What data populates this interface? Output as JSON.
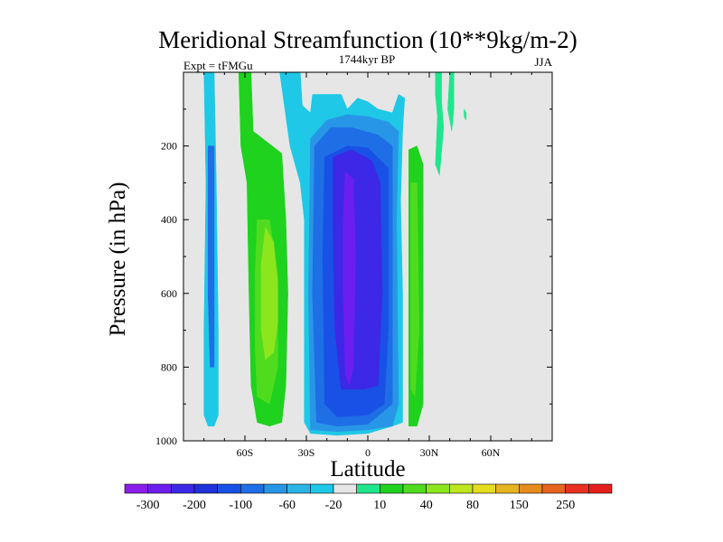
{
  "chart_data": {
    "type": "heatmap",
    "title": "Meridional Streamfunction (10**9kg/m-2)",
    "left_label": "Expt = tFMGu",
    "center_label": "1744kyr BP",
    "right_label": "JJA",
    "xlabel": "Latitude",
    "ylabel": "Pressure (in hPa)",
    "xlim": [
      -90,
      90
    ],
    "ylim": [
      1000,
      0
    ],
    "x_ticks": [
      {
        "value": -60,
        "label": "60S"
      },
      {
        "value": -30,
        "label": "30S"
      },
      {
        "value": 0,
        "label": "0"
      },
      {
        "value": 30,
        "label": "30N"
      },
      {
        "value": 60,
        "label": "60N"
      }
    ],
    "y_ticks": [
      {
        "value": 200,
        "label": "200"
      },
      {
        "value": 400,
        "label": "400"
      },
      {
        "value": 600,
        "label": "600"
      },
      {
        "value": 800,
        "label": "800"
      },
      {
        "value": 1000,
        "label": "1000"
      }
    ],
    "background_color": "#e6e6e6",
    "colorbar": {
      "colors": [
        "#8c1eeb",
        "#6c1ef0",
        "#3c28e6",
        "#1e32dc",
        "#1950e6",
        "#1e6ee6",
        "#2896e6",
        "#2cb4e6",
        "#1ec8e6",
        "#e6e6e6",
        "#1ee68c",
        "#1ed21e",
        "#50dc1e",
        "#8ce61e",
        "#bee61e",
        "#e6dc1e",
        "#e6b41e",
        "#e68c1e",
        "#e6641e",
        "#e6321e",
        "#e61e1e"
      ],
      "labels": [
        {
          "after_box": 1,
          "text": "-300"
        },
        {
          "after_box": 3,
          "text": "-200"
        },
        {
          "after_box": 5,
          "text": "-100"
        },
        {
          "after_box": 7,
          "text": "-60"
        },
        {
          "after_box": 9,
          "text": "-20"
        },
        {
          "after_box": 11,
          "text": "10"
        },
        {
          "after_box": 13,
          "text": "40"
        },
        {
          "after_box": 15,
          "text": "80"
        },
        {
          "after_box": 17,
          "text": "150"
        },
        {
          "after_box": 19,
          "text": "250"
        }
      ]
    },
    "cells": [
      {
        "name": "cyan-southern-polar-cell",
        "color": "#1ec8e6",
        "pts": [
          [
            -80,
            0
          ],
          [
            -75,
            0
          ],
          [
            -74,
            300
          ],
          [
            -73,
            700
          ],
          [
            -73,
            930
          ],
          [
            -75,
            960
          ],
          [
            -78,
            960
          ],
          [
            -80,
            930
          ],
          [
            -80,
            700
          ],
          [
            -79,
            300
          ]
        ]
      },
      {
        "name": "blue-southern-polar-core",
        "color": "#1e6ee6",
        "pts": [
          [
            -78,
            200
          ],
          [
            -75,
            200
          ],
          [
            -75,
            800
          ],
          [
            -77,
            800
          ],
          [
            -78,
            600
          ]
        ]
      },
      {
        "name": "green-ferrel-cell",
        "color": "#1ed21e",
        "pts": [
          [
            -63,
            0
          ],
          [
            -57,
            0
          ],
          [
            -56,
            160
          ],
          [
            -42,
            220
          ],
          [
            -40,
            400
          ],
          [
            -39,
            600
          ],
          [
            -40,
            850
          ],
          [
            -42,
            950
          ],
          [
            -48,
            960
          ],
          [
            -54,
            950
          ],
          [
            -57,
            850
          ],
          [
            -58,
            600
          ],
          [
            -59,
            300
          ],
          [
            -62,
            200
          ]
        ]
      },
      {
        "name": "light-green-ferrel-core",
        "color": "#50dc1e",
        "pts": [
          [
            -54,
            400
          ],
          [
            -48,
            400
          ],
          [
            -44,
            550
          ],
          [
            -44,
            800
          ],
          [
            -48,
            900
          ],
          [
            -54,
            880
          ],
          [
            -55,
            750
          ],
          [
            -55,
            550
          ]
        ]
      },
      {
        "name": "yellow-green-ferrel-max",
        "color": "#8ce61e",
        "pts": [
          [
            -50,
            420
          ],
          [
            -46,
            460
          ],
          [
            -44,
            570
          ],
          [
            -44,
            680
          ],
          [
            -46,
            760
          ],
          [
            -50,
            780
          ],
          [
            -52,
            700
          ],
          [
            -52,
            520
          ]
        ]
      },
      {
        "name": "cyan-hadley-envelope",
        "color": "#1ec8e6",
        "pts": [
          [
            -43,
            0
          ],
          [
            -33,
            0
          ],
          [
            -32,
            90
          ],
          [
            -28,
            110
          ],
          [
            -27,
            60
          ],
          [
            -13,
            60
          ],
          [
            -10,
            100
          ],
          [
            -5,
            70
          ],
          [
            0,
            80
          ],
          [
            5,
            100
          ],
          [
            12,
            110
          ],
          [
            15,
            60
          ],
          [
            18,
            70
          ],
          [
            17,
            160
          ],
          [
            16,
            350
          ],
          [
            17,
            600
          ],
          [
            17,
            950
          ],
          [
            12,
            960
          ],
          [
            0,
            980
          ],
          [
            -15,
            985
          ],
          [
            -28,
            980
          ],
          [
            -31,
            950
          ],
          [
            -31,
            600
          ],
          [
            -31,
            400
          ],
          [
            -33,
            300
          ],
          [
            -38,
            200
          ]
        ]
      },
      {
        "name": "blue-hadley-outer",
        "color": "#2896e6",
        "pts": [
          [
            -28,
            180
          ],
          [
            -20,
            130
          ],
          [
            -10,
            115
          ],
          [
            0,
            120
          ],
          [
            10,
            135
          ],
          [
            15,
            160
          ],
          [
            14,
            400
          ],
          [
            15,
            900
          ],
          [
            12,
            960
          ],
          [
            0,
            970
          ],
          [
            -15,
            975
          ],
          [
            -28,
            970
          ],
          [
            -29,
            600
          ]
        ]
      },
      {
        "name": "blue-hadley-mid",
        "color": "#1e6ee6",
        "pts": [
          [
            -26,
            200
          ],
          [
            -18,
            150
          ],
          [
            -8,
            150
          ],
          [
            5,
            170
          ],
          [
            12,
            200
          ],
          [
            12,
            500
          ],
          [
            12,
            900
          ],
          [
            0,
            955
          ],
          [
            -15,
            960
          ],
          [
            -25,
            950
          ],
          [
            -27,
            600
          ]
        ]
      },
      {
        "name": "blue-hadley-inner",
        "color": "#1950e6",
        "pts": [
          [
            -21,
            230
          ],
          [
            -10,
            200
          ],
          [
            0,
            205
          ],
          [
            10,
            260
          ],
          [
            10,
            700
          ],
          [
            8,
            900
          ],
          [
            0,
            930
          ],
          [
            -15,
            935
          ],
          [
            -21,
            900
          ],
          [
            -22,
            500
          ]
        ]
      },
      {
        "name": "indigo-hadley-core",
        "color": "#3c28e6",
        "pts": [
          [
            -17,
            230
          ],
          [
            -8,
            210
          ],
          [
            2,
            240
          ],
          [
            6,
            300
          ],
          [
            7,
            600
          ],
          [
            5,
            850
          ],
          [
            -2,
            860
          ],
          [
            -13,
            860
          ],
          [
            -16,
            700
          ],
          [
            -17,
            400
          ]
        ]
      },
      {
        "name": "violet-hadley-max",
        "color": "#6c1ef0",
        "pts": [
          [
            -11,
            270
          ],
          [
            -7,
            290
          ],
          [
            -6,
            500
          ],
          [
            -7,
            800
          ],
          [
            -9,
            850
          ],
          [
            -11,
            820
          ],
          [
            -12,
            600
          ],
          [
            -12,
            400
          ]
        ]
      },
      {
        "name": "northern-green-cell",
        "color": "#1ed21e",
        "pts": [
          [
            20,
            210
          ],
          [
            24,
            200
          ],
          [
            27,
            250
          ],
          [
            27,
            900
          ],
          [
            24,
            960
          ],
          [
            20,
            960
          ],
          [
            20,
            400
          ]
        ]
      },
      {
        "name": "northern-light-cell",
        "color": "#50dc1e",
        "pts": [
          [
            21,
            300
          ],
          [
            24,
            300
          ],
          [
            25,
            700
          ],
          [
            23,
            880
          ],
          [
            21,
            860
          ]
        ]
      },
      {
        "name": "upper-tendril-1",
        "color": "#1ee68c",
        "pts": [
          [
            33,
            0
          ],
          [
            36,
            0
          ],
          [
            36,
            80
          ],
          [
            37,
            150
          ],
          [
            35,
            280
          ],
          [
            33,
            250
          ],
          [
            34,
            120
          ],
          [
            33,
            60
          ]
        ]
      },
      {
        "name": "upper-tendril-2",
        "color": "#1ee68c",
        "pts": [
          [
            40,
            0
          ],
          [
            42,
            0
          ],
          [
            42,
            100
          ],
          [
            41,
            160
          ],
          [
            39,
            100
          ]
        ]
      },
      {
        "name": "upper-tendril-3",
        "color": "#1ee68c",
        "pts": [
          [
            47,
            100
          ],
          [
            48,
            110
          ],
          [
            48,
            130
          ],
          [
            47,
            120
          ]
        ]
      }
    ]
  }
}
